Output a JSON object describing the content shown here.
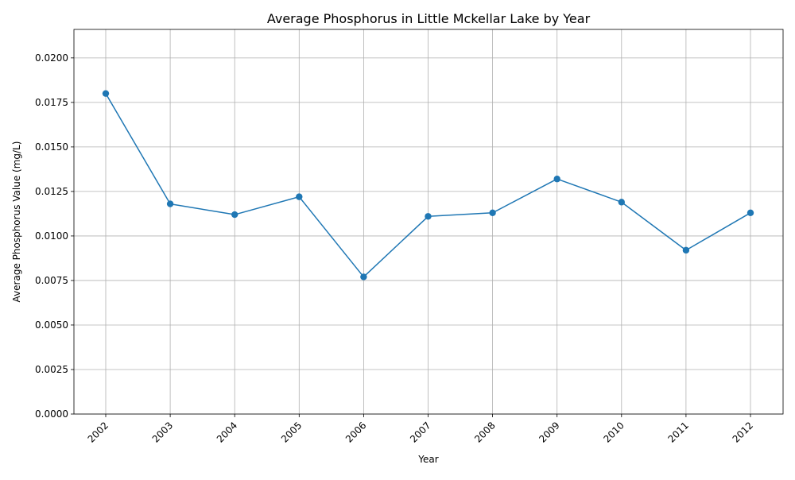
{
  "chart_data": {
    "type": "line",
    "title": "Average Phosphorus in Little Mckellar Lake by Year",
    "xlabel": "Year",
    "ylabel": "Average Phosphorus Value (mg/L)",
    "x": [
      "2002",
      "2003",
      "2004",
      "2005",
      "2006",
      "2007",
      "2008",
      "2009",
      "2010",
      "2011",
      "2012"
    ],
    "series": [
      {
        "values": [
          0.018,
          0.0118,
          0.0112,
          0.0122,
          0.0077,
          0.0111,
          0.0113,
          0.0132,
          0.0119,
          0.0092,
          0.0113
        ]
      }
    ],
    "ylim": [
      0,
      0.0216
    ],
    "yticks": [
      "0.0000",
      "0.0025",
      "0.0050",
      "0.0075",
      "0.0100",
      "0.0125",
      "0.0150",
      "0.0175",
      "0.0200"
    ],
    "grid": true,
    "marker": "circle",
    "line_color": "#1f77b4",
    "grid_color": "#b0b0b0"
  }
}
